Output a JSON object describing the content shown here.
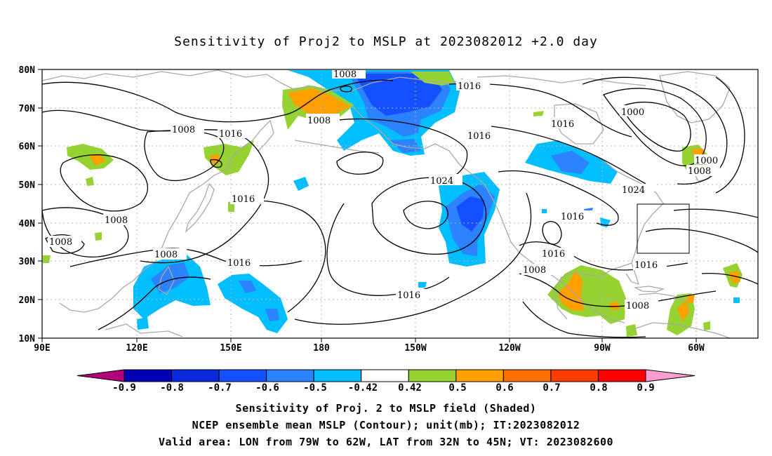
{
  "title": "Sensitivity of Proj2 to MSLP at 2023082012 +2.0 day",
  "map": {
    "lat_ticks": [
      "80N",
      "70N",
      "60N",
      "50N",
      "40N",
      "30N",
      "20N",
      "10N"
    ],
    "lon_ticks": [
      "90E",
      "120E",
      "150E",
      "180",
      "150W",
      "120W",
      "90W",
      "60W"
    ],
    "contour_labels": [
      {
        "text": "1008"
      },
      {
        "text": "1016"
      },
      {
        "text": "1008"
      },
      {
        "text": "1016"
      },
      {
        "text": "1008"
      },
      {
        "text": "1016"
      },
      {
        "text": "1000"
      },
      {
        "text": "1016"
      },
      {
        "text": "1024"
      },
      {
        "text": "1000"
      },
      {
        "text": "1008"
      },
      {
        "text": "1024"
      },
      {
        "text": "1008"
      },
      {
        "text": "1008"
      },
      {
        "text": "1016"
      },
      {
        "text": "1008"
      },
      {
        "text": "1016"
      },
      {
        "text": "1016"
      },
      {
        "text": "1008"
      },
      {
        "text": "1016"
      },
      {
        "text": "1016"
      },
      {
        "text": "1008"
      }
    ],
    "valid_area_box": {
      "lon": [
        -79,
        -62
      ],
      "lat": [
        32,
        45
      ]
    }
  },
  "colorbar": {
    "labels": [
      "-0.9",
      "-0.8",
      "-0.7",
      "-0.6",
      "-0.5",
      "-0.42",
      "0.42",
      "0.5",
      "0.6",
      "0.7",
      "0.8",
      "0.9"
    ],
    "colors": [
      "#b3007a",
      "#0000b4",
      "#0a28dc",
      "#1450ff",
      "#2d82ff",
      "#00beff",
      "#ffffff",
      "#96d232",
      "#ff9f00",
      "#ff6e00",
      "#ff3c00",
      "#ff0000",
      "#ff9ecf"
    ]
  },
  "captions": {
    "line1": "Sensitivity of Proj. 2 to MSLP field (Shaded)",
    "line2": "NCEP ensemble mean MSLP (Contour); unit(mb); IT:2023082012",
    "line3": "Valid area: LON from 79W to 62W, LAT from 32N to 45N; VT: 2023082600"
  }
}
